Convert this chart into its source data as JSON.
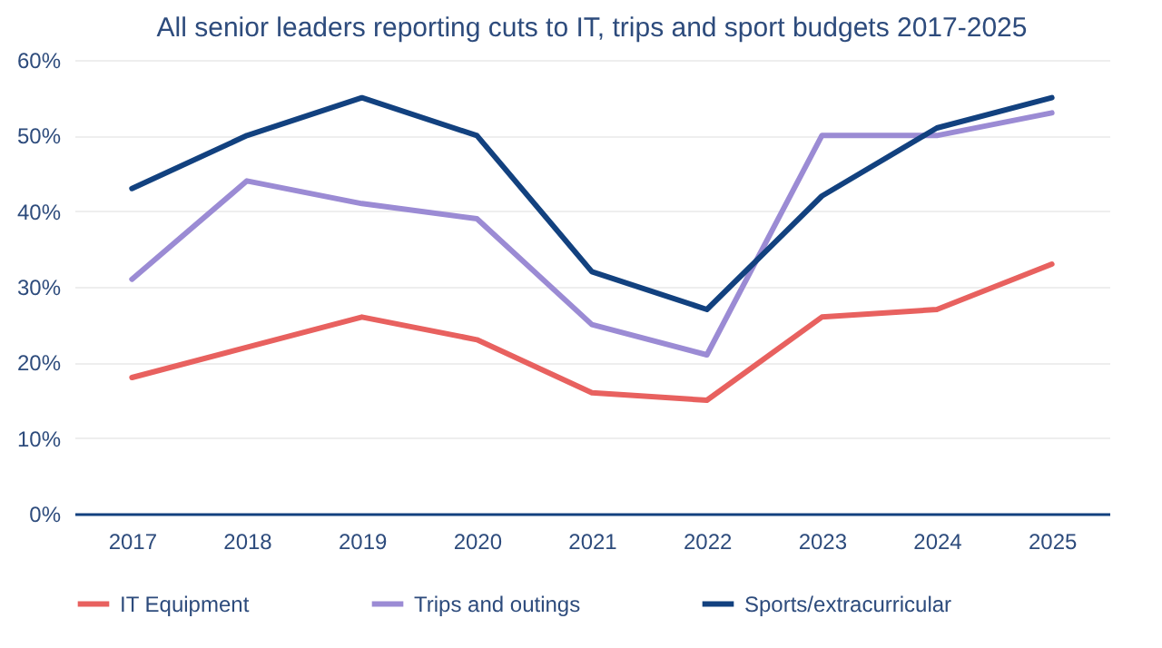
{
  "chart_data": {
    "type": "line",
    "title": "All senior leaders reporting cuts to IT, trips and sport budgets 2017-2025",
    "categories": [
      "2017",
      "2018",
      "2019",
      "2020",
      "2021",
      "2022",
      "2023",
      "2024",
      "2025"
    ],
    "series": [
      {
        "name": "IT Equipment",
        "color": "#e8615f",
        "values": [
          18,
          22,
          26,
          23,
          16,
          15,
          26,
          27,
          33
        ]
      },
      {
        "name": "Trips and outings",
        "color": "#9b8bd4",
        "values": [
          31,
          44,
          41,
          39,
          25,
          21,
          50,
          50,
          53
        ]
      },
      {
        "name": "Sports/extracurricular",
        "color": "#12417f",
        "values": [
          43,
          50,
          55,
          50,
          32,
          27,
          42,
          51,
          55
        ]
      }
    ],
    "ylim": [
      0,
      60
    ],
    "yticks": [
      {
        "value": 0,
        "label": "0%"
      },
      {
        "value": 10,
        "label": "10%"
      },
      {
        "value": 20,
        "label": "20%"
      },
      {
        "value": 30,
        "label": "30%"
      },
      {
        "value": 40,
        "label": "40%"
      },
      {
        "value": 50,
        "label": "50%"
      },
      {
        "value": 60,
        "label": "60%"
      }
    ],
    "grid": "y",
    "legend": "bottom",
    "marker": "none",
    "line_style": "solid"
  }
}
